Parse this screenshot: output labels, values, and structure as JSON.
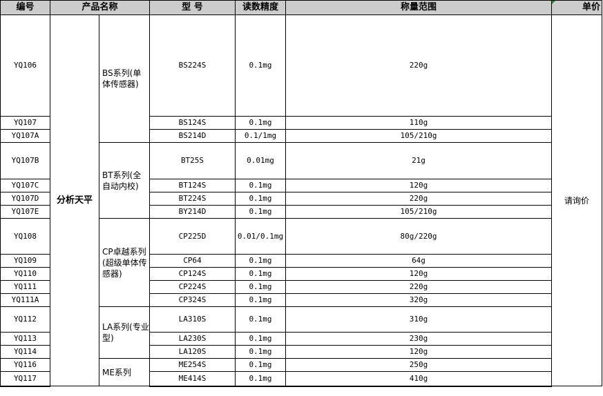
{
  "headers": {
    "code": "编号",
    "product_name": "产品名称",
    "model": "型 号",
    "precision": "读数精度",
    "range": "称量范围",
    "price": "单价"
  },
  "category": "分析天平",
  "price_note": "请询价",
  "series": [
    {
      "name": "BS系列(单体传感器)",
      "rows": 3
    },
    {
      "name": "BT系列(全自动内校)",
      "rows": 4
    },
    {
      "name": "CP卓越系列(超级单体传感器)",
      "rows": 5
    },
    {
      "name": "LA系列(专业型)",
      "rows": 3
    },
    {
      "name": "ME系列",
      "rows": 2
    }
  ],
  "rows": [
    {
      "code": "YQ106",
      "model": "BS224S",
      "precision": "0.1mg",
      "range": "220g"
    },
    {
      "code": "YQ107",
      "model": "BS124S",
      "precision": "0.1mg",
      "range": "110g"
    },
    {
      "code": "YQ107A",
      "model": "BS214D",
      "precision": "0.1/1mg",
      "range": "105/210g"
    },
    {
      "code": "YQ107B",
      "model": "BT25S",
      "precision": "0.01mg",
      "range": "21g"
    },
    {
      "code": "YQ107C",
      "model": "BT124S",
      "precision": "0.1mg",
      "range": "120g"
    },
    {
      "code": "YQ107D",
      "model": "BT224S",
      "precision": "0.1mg",
      "range": "220g"
    },
    {
      "code": "YQ107E",
      "model": "BY214D",
      "precision": "0.1mg",
      "range": "105/210g"
    },
    {
      "code": "YQ108",
      "model": "CP225D",
      "precision": "0.01/0.1mg",
      "range": "80g/220g"
    },
    {
      "code": "YQ109",
      "model": "CP64",
      "precision": "0.1mg",
      "range": "64g"
    },
    {
      "code": "YQ110",
      "model": "CP124S",
      "precision": "0.1mg",
      "range": "120g"
    },
    {
      "code": "YQ111",
      "model": "CP224S",
      "precision": "0.1mg",
      "range": "220g"
    },
    {
      "code": "YQ111A",
      "model": "CP324S",
      "precision": "0.1mg",
      "range": "320g"
    },
    {
      "code": "YQ112",
      "model": "LA310S",
      "precision": "0.1mg",
      "range": "310g"
    },
    {
      "code": "YQ113",
      "model": "LA230S",
      "precision": "0.1mg",
      "range": "230g"
    },
    {
      "code": "YQ114",
      "model": "LA120S",
      "precision": "0.1mg",
      "range": "120g"
    },
    {
      "code": "YQ116",
      "model": "ME254S",
      "precision": "0.1mg",
      "range": "250g"
    },
    {
      "code": "YQ117",
      "model": "ME414S",
      "precision": "0.1mg",
      "range": "410g"
    }
  ]
}
